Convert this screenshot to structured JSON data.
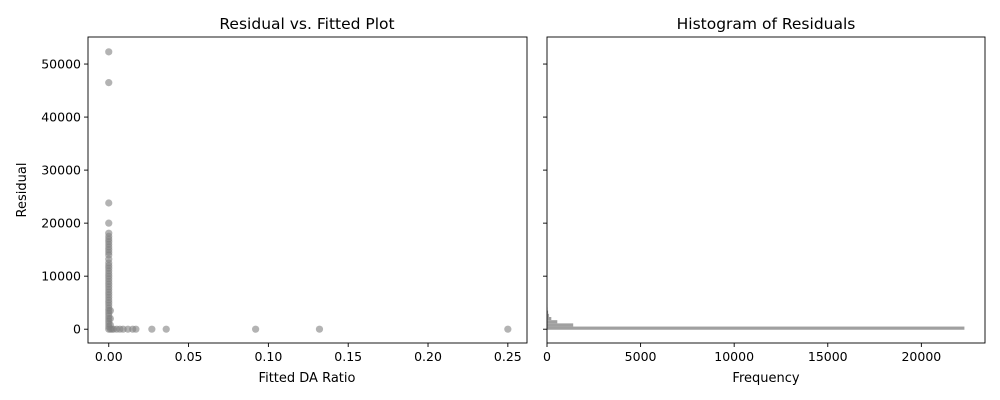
{
  "chart_data": [
    {
      "type": "scatter",
      "title": "Residual vs. Fitted Plot",
      "xlabel": "Fitted DA Ratio",
      "ylabel": "Residual",
      "xlim": [
        -0.013,
        0.262
      ],
      "ylim": [
        -2600,
        55100
      ],
      "xticks": [
        0.0,
        0.05,
        0.1,
        0.15,
        0.2,
        0.25
      ],
      "xtick_labels": [
        "0.00",
        "0.05",
        "0.10",
        "0.15",
        "0.20",
        "0.25"
      ],
      "yticks": [
        0,
        10000,
        20000,
        30000,
        40000,
        50000
      ],
      "ytick_labels": [
        "0",
        "10000",
        "20000",
        "30000",
        "40000",
        "50000"
      ],
      "grid": false,
      "marker_color": "#808080",
      "points": [
        {
          "x": 0.0,
          "y": 52300
        },
        {
          "x": 0.0,
          "y": 46500
        },
        {
          "x": 0.0,
          "y": 23800
        },
        {
          "x": 0.0,
          "y": 20000
        },
        {
          "x": 0.0,
          "y": 18100
        },
        {
          "x": 0.0,
          "y": 17500
        },
        {
          "x": 0.0,
          "y": 17000
        },
        {
          "x": 0.0,
          "y": 16500
        },
        {
          "x": 0.0,
          "y": 16000
        },
        {
          "x": 0.0,
          "y": 15500
        },
        {
          "x": 0.0,
          "y": 15000
        },
        {
          "x": 0.0,
          "y": 14500
        },
        {
          "x": 0.0,
          "y": 14000
        },
        {
          "x": 0.0,
          "y": 13200
        },
        {
          "x": 0.0,
          "y": 12500
        },
        {
          "x": 0.0,
          "y": 12000
        },
        {
          "x": 0.0,
          "y": 11500
        },
        {
          "x": 0.0,
          "y": 11000
        },
        {
          "x": 0.0,
          "y": 10500
        },
        {
          "x": 0.0,
          "y": 10000
        },
        {
          "x": 0.0,
          "y": 9500
        },
        {
          "x": 0.0,
          "y": 9000
        },
        {
          "x": 0.0,
          "y": 8500
        },
        {
          "x": 0.0,
          "y": 8000
        },
        {
          "x": 0.0,
          "y": 7500
        },
        {
          "x": 0.0,
          "y": 7000
        },
        {
          "x": 0.0,
          "y": 6500
        },
        {
          "x": 0.0,
          "y": 6000
        },
        {
          "x": 0.0,
          "y": 5500
        },
        {
          "x": 0.0,
          "y": 5000
        },
        {
          "x": 0.0,
          "y": 4500
        },
        {
          "x": 0.0,
          "y": 4000
        },
        {
          "x": 0.0,
          "y": 3500
        },
        {
          "x": 0.0,
          "y": 3000
        },
        {
          "x": 0.0,
          "y": 2500
        },
        {
          "x": 0.0,
          "y": 2000
        },
        {
          "x": 0.0,
          "y": 1500
        },
        {
          "x": 0.0,
          "y": 1000
        },
        {
          "x": 0.0,
          "y": 500
        },
        {
          "x": 0.0,
          "y": 0
        },
        {
          "x": 0.001,
          "y": 3500
        },
        {
          "x": 0.001,
          "y": 2000
        },
        {
          "x": 0.001,
          "y": 800
        },
        {
          "x": 0.001,
          "y": 0
        },
        {
          "x": 0.002,
          "y": 0
        },
        {
          "x": 0.003,
          "y": 0
        },
        {
          "x": 0.005,
          "y": 0
        },
        {
          "x": 0.007,
          "y": 0
        },
        {
          "x": 0.009,
          "y": 0
        },
        {
          "x": 0.012,
          "y": 0
        },
        {
          "x": 0.015,
          "y": 0
        },
        {
          "x": 0.017,
          "y": 0
        },
        {
          "x": 0.027,
          "y": 0
        },
        {
          "x": 0.036,
          "y": 0
        },
        {
          "x": 0.092,
          "y": 0
        },
        {
          "x": 0.132,
          "y": 0
        },
        {
          "x": 0.25,
          "y": 0
        }
      ]
    },
    {
      "type": "bar",
      "orientation": "horizontal",
      "title": "Histogram of Residuals",
      "xlabel": "Frequency",
      "ylabel": "",
      "xlim": [
        0,
        23400
      ],
      "ylim": [
        -2600,
        55100
      ],
      "xticks": [
        0,
        5000,
        10000,
        15000,
        20000
      ],
      "xtick_labels": [
        "0",
        "5000",
        "10000",
        "15000",
        "20000"
      ],
      "shares_y_with": "Residual vs. Fitted Plot",
      "grid": false,
      "bar_color": "#a0a0a0",
      "bins": [
        {
          "y0": -100,
          "y1": 500,
          "count": 22300
        },
        {
          "y0": 500,
          "y1": 1100,
          "count": 1400
        },
        {
          "y0": 1100,
          "y1": 1700,
          "count": 550
        },
        {
          "y0": 1700,
          "y1": 2300,
          "count": 230
        },
        {
          "y0": 2300,
          "y1": 2900,
          "count": 110
        },
        {
          "y0": 2900,
          "y1": 3500,
          "count": 60
        },
        {
          "y0": 3500,
          "y1": 4100,
          "count": 30
        },
        {
          "y0": 4100,
          "y1": 4700,
          "count": 15
        }
      ]
    }
  ]
}
